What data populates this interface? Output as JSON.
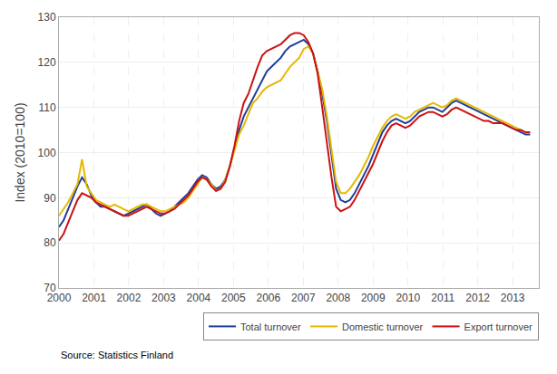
{
  "chart_data": {
    "type": "line",
    "ylabel": "Index (2010=100)",
    "annotations": [
      "Source: Statistics Finland"
    ],
    "x": [
      2000,
      2000.1324,
      2000.2647,
      2000.3971,
      2000.5294,
      2000.6618,
      2000.7941,
      2000.9265,
      2001.0588,
      2001.1912,
      2001.3235,
      2001.4559,
      2001.5882,
      2001.7206,
      2001.8529,
      2001.9853,
      2002.1176,
      2002.25,
      2002.3824,
      2002.5147,
      2002.6471,
      2002.7794,
      2002.9118,
      2003.0441,
      2003.1765,
      2003.3088,
      2003.4412,
      2003.5735,
      2003.7059,
      2003.8382,
      2003.9706,
      2004.1029,
      2004.2353,
      2004.3676,
      2004.5,
      2004.6324,
      2004.7647,
      2004.8971,
      2005.0294,
      2005.1618,
      2005.2941,
      2005.4265,
      2005.5588,
      2005.6912,
      2005.8235,
      2005.9559,
      2006.0882,
      2006.2206,
      2006.3529,
      2006.4853,
      2006.6176,
      2006.75,
      2006.8824,
      2007.0147,
      2007.1471,
      2007.2794,
      2007.4118,
      2007.5441,
      2007.6765,
      2007.8088,
      2007.9412,
      2008.0735,
      2008.2059,
      2008.3382,
      2008.4706,
      2008.6029,
      2008.7353,
      2008.8676,
      2009,
      2009.1324,
      2009.2647,
      2009.3971,
      2009.5294,
      2009.6618,
      2009.7941,
      2009.9265,
      2010.0588,
      2010.1912,
      2010.3235,
      2010.4559,
      2010.5882,
      2010.7206,
      2010.8529,
      2010.9853,
      2011.1176,
      2011.25,
      2011.3824,
      2011.5147,
      2011.6471,
      2011.7794,
      2011.9118,
      2012.0441,
      2012.1765,
      2012.3088,
      2012.4412,
      2012.5735,
      2012.7059,
      2012.8382,
      2012.9706,
      2013.1029,
      2013.2353,
      2013.3676,
      2013.5
    ],
    "series": [
      {
        "name": "Total turnover",
        "color": "#1F3D99",
        "values": [
          83.5,
          85.0,
          87.5,
          90.0,
          92.5,
          94.5,
          93.0,
          90.5,
          89.0,
          88.0,
          88.0,
          87.5,
          87.0,
          86.5,
          86.0,
          86.5,
          87.0,
          87.5,
          88.0,
          88.5,
          87.5,
          86.5,
          86.0,
          86.5,
          87.0,
          88.0,
          89.0,
          90.0,
          91.0,
          92.5,
          94.0,
          95.0,
          94.5,
          93.0,
          92.0,
          92.5,
          94.0,
          97.0,
          101.0,
          105.0,
          108.0,
          110.0,
          112.0,
          114.0,
          116.0,
          118.0,
          119.0,
          120.0,
          121.0,
          122.5,
          123.5,
          124.0,
          124.5,
          125.0,
          124.0,
          122.0,
          118.0,
          113.0,
          107.0,
          100.0,
          92.0,
          89.5,
          89.0,
          89.5,
          91.0,
          93.0,
          95.0,
          97.0,
          99.5,
          102.0,
          104.5,
          106.0,
          107.0,
          107.5,
          107.0,
          106.5,
          107.0,
          108.0,
          109.0,
          109.5,
          110.0,
          110.0,
          109.5,
          109.0,
          110.0,
          111.0,
          111.5,
          111.0,
          110.5,
          110.0,
          109.5,
          109.0,
          108.5,
          108.0,
          107.5,
          107.0,
          106.5,
          106.0,
          105.5,
          105.0,
          104.5,
          104.0,
          104.0
        ]
      },
      {
        "name": "Domestic turnover",
        "color": "#E6B800",
        "values": [
          86.0,
          87.5,
          89.0,
          91.0,
          93.0,
          98.5,
          92.5,
          91.0,
          89.5,
          89.0,
          88.5,
          88.0,
          88.5,
          88.0,
          87.5,
          87.0,
          87.5,
          88.0,
          88.5,
          88.5,
          88.0,
          87.5,
          87.0,
          87.0,
          87.5,
          88.0,
          88.5,
          89.0,
          90.0,
          91.5,
          93.0,
          94.5,
          94.0,
          93.0,
          91.5,
          92.0,
          94.0,
          97.0,
          100.5,
          104.0,
          106.0,
          108.5,
          111.0,
          112.0,
          113.5,
          114.5,
          115.0,
          115.5,
          116.0,
          117.5,
          119.0,
          120.0,
          121.0,
          123.0,
          123.5,
          122.0,
          118.0,
          114.0,
          108.0,
          101.0,
          93.5,
          91.0,
          91.0,
          92.0,
          93.5,
          95.0,
          97.0,
          99.0,
          101.5,
          103.5,
          105.5,
          107.0,
          108.0,
          108.5,
          108.0,
          107.5,
          108.0,
          109.0,
          109.5,
          110.0,
          110.5,
          111.0,
          110.5,
          110.0,
          110.5,
          111.5,
          112.0,
          111.5,
          111.0,
          110.5,
          110.0,
          109.5,
          109.0,
          108.5,
          108.0,
          107.5,
          107.0,
          106.5,
          106.0,
          105.5,
          105.0,
          104.5,
          104.5
        ]
      },
      {
        "name": "Export turnover",
        "color": "#CC1111",
        "values": [
          80.5,
          82.0,
          84.5,
          87.0,
          89.5,
          91.0,
          90.5,
          90.0,
          89.0,
          88.5,
          88.0,
          87.5,
          87.0,
          86.5,
          86.0,
          86.0,
          86.5,
          87.0,
          87.5,
          88.0,
          87.5,
          87.0,
          86.5,
          86.5,
          87.0,
          87.5,
          88.5,
          89.5,
          90.5,
          92.0,
          93.5,
          94.5,
          94.0,
          92.5,
          91.5,
          92.0,
          93.5,
          97.0,
          101.5,
          107.0,
          111.0,
          113.0,
          116.0,
          119.0,
          121.5,
          122.5,
          123.0,
          123.5,
          124.0,
          125.0,
          126.0,
          126.5,
          126.5,
          126.0,
          124.5,
          122.0,
          117.5,
          110.0,
          102.0,
          94.5,
          88.0,
          87.0,
          87.5,
          88.0,
          89.5,
          91.5,
          93.5,
          95.5,
          97.5,
          100.0,
          102.5,
          104.5,
          106.0,
          106.5,
          106.0,
          105.5,
          106.0,
          107.0,
          108.0,
          108.5,
          109.0,
          109.0,
          108.5,
          108.0,
          108.5,
          109.5,
          110.0,
          109.5,
          109.0,
          108.5,
          108.0,
          107.5,
          107.0,
          107.0,
          106.5,
          106.5,
          106.5,
          106.0,
          105.5,
          105.0,
          105.0,
          104.5,
          104.5
        ]
      }
    ],
    "xlim": [
      2000.0,
      2013.75
    ],
    "ylim": [
      70,
      130
    ],
    "xticks": [
      2000,
      2001,
      2002,
      2003,
      2004,
      2005,
      2006,
      2007,
      2008,
      2009,
      2010,
      2011,
      2012,
      2013
    ],
    "yticks": [
      70,
      80,
      90,
      100,
      110,
      120,
      130
    ],
    "grid": true,
    "legend": "lower right"
  }
}
